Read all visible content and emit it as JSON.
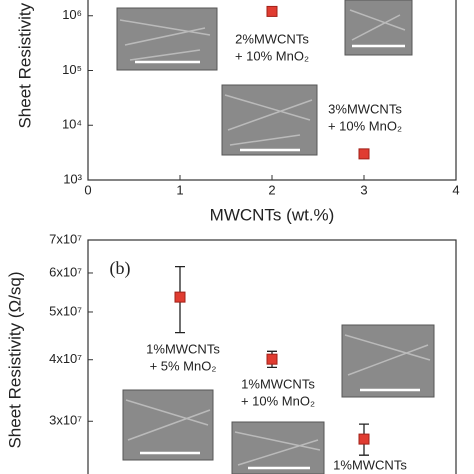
{
  "chart_data": [
    {
      "type": "scatter",
      "xlabel": "MWCNTs (wt.%)",
      "ylabel": "Sheet Resistivity (Ω/sq)",
      "x": [
        2,
        3
      ],
      "values": [
        1200000,
        3000
      ],
      "color": "#e03c31",
      "xlim": [
        0,
        4
      ],
      "xticks": [
        0,
        1,
        2,
        3,
        4
      ],
      "ylim": [
        1000,
        10000000
      ],
      "yscale": "log",
      "yticks": [
        {
          "value": 1000,
          "label": "10³"
        },
        {
          "value": 10000,
          "label": "10⁴"
        },
        {
          "value": 100000,
          "label": "10⁵"
        },
        {
          "value": 1000000,
          "label": "10⁶"
        }
      ],
      "annotations": [
        [
          "2%MWCNTs",
          "+ 10% MnO₂"
        ],
        [
          "3%MWCNTs",
          "+ 10% MnO₂"
        ]
      ]
    },
    {
      "type": "scatter",
      "panel_label": "(b)",
      "ylabel": "Sheet Resistivity (Ω/sq)",
      "x": [
        1,
        2,
        3
      ],
      "values": [
        53600000,
        40100000,
        27600000
      ],
      "errors": [
        8200000,
        1500000,
        2000000
      ],
      "color": "#e03c31",
      "xlim": [
        0,
        4
      ],
      "ylim": [
        20000000,
        70000000
      ],
      "yscale": "log",
      "yticks": [
        {
          "value": 30000000,
          "label": "3x10⁷"
        },
        {
          "value": 40000000,
          "label": "4x10⁷"
        },
        {
          "value": 50000000,
          "label": "5x10⁷"
        },
        {
          "value": 60000000,
          "label": "6x10⁷"
        },
        {
          "value": 70000000,
          "label": "7x10⁷"
        }
      ],
      "annotations": [
        [
          "1%MWCNTs",
          "+ 5% MnO₂"
        ],
        [
          "1%MWCNTs",
          "+ 10% MnO₂"
        ],
        [
          "1%MWCNTs"
        ]
      ]
    }
  ]
}
